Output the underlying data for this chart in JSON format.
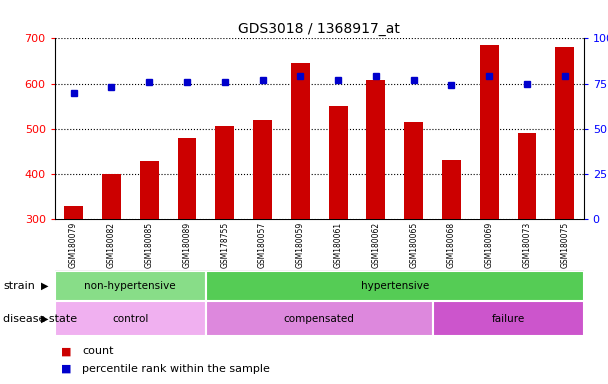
{
  "title": "GDS3018 / 1368917_at",
  "samples": [
    "GSM180079",
    "GSM180082",
    "GSM180085",
    "GSM180089",
    "GSM178755",
    "GSM180057",
    "GSM180059",
    "GSM180061",
    "GSM180062",
    "GSM180065",
    "GSM180068",
    "GSM180069",
    "GSM180073",
    "GSM180075"
  ],
  "counts": [
    328,
    400,
    428,
    480,
    505,
    520,
    645,
    550,
    607,
    515,
    430,
    685,
    490,
    680
  ],
  "percentiles": [
    70,
    73,
    76,
    76,
    76,
    77,
    79,
    77,
    79,
    77,
    74,
    79,
    75,
    79
  ],
  "ylim_left": [
    300,
    700
  ],
  "ylim_right": [
    0,
    100
  ],
  "yticks_left": [
    300,
    400,
    500,
    600,
    700
  ],
  "yticks_right": [
    0,
    25,
    50,
    75,
    100
  ],
  "bar_color": "#cc0000",
  "dot_color": "#0000cc",
  "strain_groups": [
    {
      "label": "non-hypertensive",
      "start": 0,
      "end": 4,
      "color": "#88dd88"
    },
    {
      "label": "hypertensive",
      "start": 4,
      "end": 14,
      "color": "#55cc55"
    }
  ],
  "disease_groups": [
    {
      "label": "control",
      "start": 0,
      "end": 4,
      "color": "#f0b0f0"
    },
    {
      "label": "compensated",
      "start": 4,
      "end": 10,
      "color": "#dd88dd"
    },
    {
      "label": "failure",
      "start": 10,
      "end": 14,
      "color": "#cc55cc"
    }
  ],
  "legend_count_label": "count",
  "legend_pct_label": "percentile rank within the sample",
  "background_color": "#ffffff",
  "label_bg_color": "#cccccc"
}
